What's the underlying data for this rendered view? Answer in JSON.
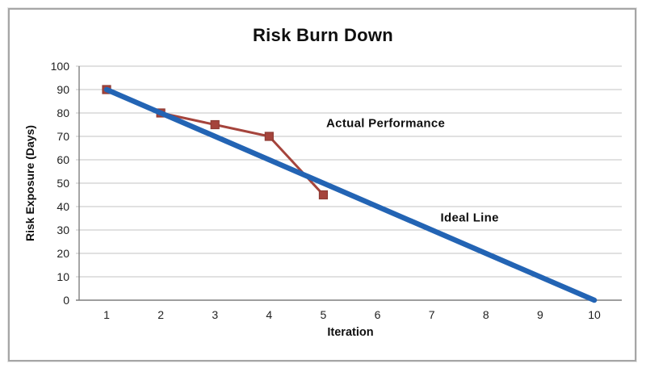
{
  "chart_data": {
    "type": "line",
    "title": "Risk Burn Down",
    "xlabel": "Iteration",
    "ylabel": "Risk Exposure (Days)",
    "x_ticks": [
      "1",
      "2",
      "3",
      "4",
      "5",
      "6",
      "7",
      "8",
      "9",
      "10"
    ],
    "y_ticks": [
      0,
      10,
      20,
      30,
      40,
      50,
      60,
      70,
      80,
      90,
      100
    ],
    "ylim": [
      0,
      100
    ],
    "grid": "horizontal",
    "legend": "none",
    "series": [
      {
        "name": "Actual Performance",
        "x": [
          1,
          2,
          3,
          4,
          5
        ],
        "y": [
          90,
          80,
          75,
          70,
          45
        ],
        "color": "#a5443c",
        "marker": "square",
        "marker_edge": "#8e3a33",
        "marker_size": 10,
        "line_width": 3
      },
      {
        "name": "Ideal Line",
        "x": [
          1,
          10
        ],
        "y": [
          90,
          0
        ],
        "color": "#2364b4",
        "marker": "none",
        "line_width": 6.5
      }
    ],
    "annotations": [
      {
        "text": "Actual Performance",
        "x": 6.15,
        "y": 75.5
      },
      {
        "text": "Ideal Line",
        "x": 7.7,
        "y": 35.2
      }
    ],
    "colors": {
      "grid": "#c3c3c3",
      "axis": "#7f7f7f",
      "text": "#1f1f1f",
      "border": "#a6a6a6",
      "background": "#ffffff"
    }
  }
}
